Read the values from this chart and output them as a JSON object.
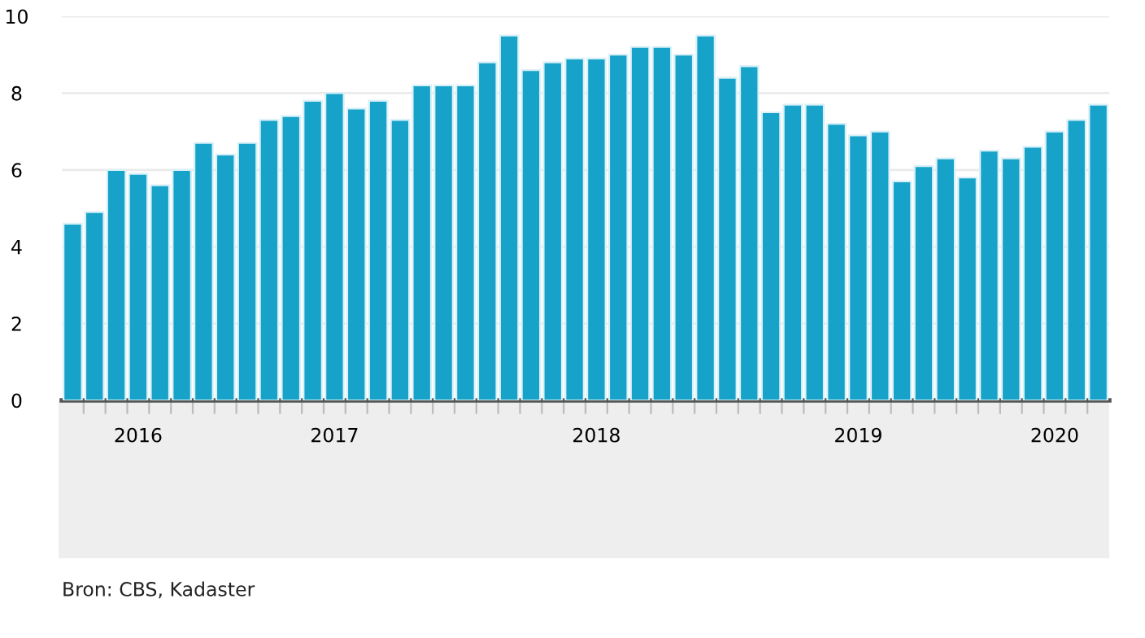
{
  "chart_data": {
    "type": "bar",
    "categories": [
      null,
      null,
      null,
      "2016",
      null,
      null,
      null,
      null,
      null,
      null,
      null,
      null,
      "2017",
      null,
      null,
      null,
      null,
      null,
      null,
      null,
      null,
      null,
      null,
      null,
      "2018",
      null,
      null,
      null,
      null,
      null,
      null,
      null,
      null,
      null,
      null,
      null,
      "2019",
      null,
      null,
      null,
      null,
      null,
      null,
      null,
      null,
      "2020",
      null,
      null
    ],
    "values": [
      4.6,
      4.9,
      6.0,
      5.9,
      5.6,
      6.0,
      6.7,
      6.4,
      6.7,
      7.3,
      7.4,
      7.8,
      8.0,
      7.6,
      7.8,
      7.3,
      8.2,
      8.2,
      8.2,
      8.8,
      9.5,
      8.6,
      8.8,
      8.9,
      8.9,
      9.0,
      9.2,
      9.2,
      9.0,
      9.5,
      8.4,
      8.7,
      7.5,
      7.7,
      7.7,
      7.2,
      6.9,
      7.0,
      5.7,
      6.1,
      6.3,
      5.8,
      6.5,
      6.3,
      6.6,
      7.0,
      7.3,
      7.7
    ],
    "color": "#17a2c9",
    "ylim": [
      0,
      10
    ],
    "yticks": [
      0,
      2,
      4,
      6,
      8,
      10
    ],
    "grid": "y",
    "annotations": [
      "Bron: CBS, Kadaster"
    ]
  }
}
